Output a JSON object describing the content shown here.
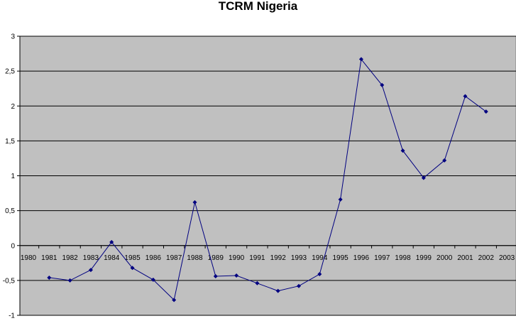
{
  "chart_data": {
    "type": "line",
    "title": "TCRM Nigeria",
    "xlabel": "",
    "ylabel": "",
    "x_categories": [
      "1980",
      "1981",
      "1982",
      "1983",
      "1984",
      "1985",
      "1986",
      "1987",
      "1988",
      "1989",
      "1990",
      "1991",
      "1992",
      "1993",
      "1994",
      "1995",
      "1996",
      "1997",
      "1998",
      "1999",
      "2000",
      "2001",
      "2002",
      "2003"
    ],
    "y_ticks": [
      {
        "value": 3,
        "label": "3"
      },
      {
        "value": 2.5,
        "label": "2,5"
      },
      {
        "value": 2,
        "label": "2"
      },
      {
        "value": 1.5,
        "label": "1,5"
      },
      {
        "value": 1,
        "label": "1"
      },
      {
        "value": 0.5,
        "label": "0,5"
      },
      {
        "value": 0,
        "label": "0"
      },
      {
        "value": -0.5,
        "label": "-0,5"
      },
      {
        "value": -1,
        "label": "-1"
      }
    ],
    "ylim": [
      -1,
      3
    ],
    "grid": "horizontal",
    "legend": "none",
    "colors": {
      "plot_background": "#c0c0c0",
      "line": "#000080",
      "gridline": "#000000"
    },
    "series": [
      {
        "x": [
          "1981",
          "1982",
          "1983",
          "1984",
          "1985",
          "1986",
          "1987",
          "1988",
          "1989",
          "1990",
          "1991",
          "1992",
          "1993",
          "1994",
          "1995",
          "1996",
          "1997",
          "1998",
          "1999",
          "2000",
          "2001",
          "2002"
        ],
        "values": [
          -0.46,
          -0.5,
          -0.35,
          0.05,
          -0.32,
          -0.49,
          -0.78,
          0.62,
          -0.44,
          -0.43,
          -0.54,
          -0.65,
          -0.58,
          -0.41,
          0.66,
          2.67,
          2.3,
          1.36,
          0.97,
          1.22,
          2.14,
          1.92
        ]
      }
    ]
  }
}
